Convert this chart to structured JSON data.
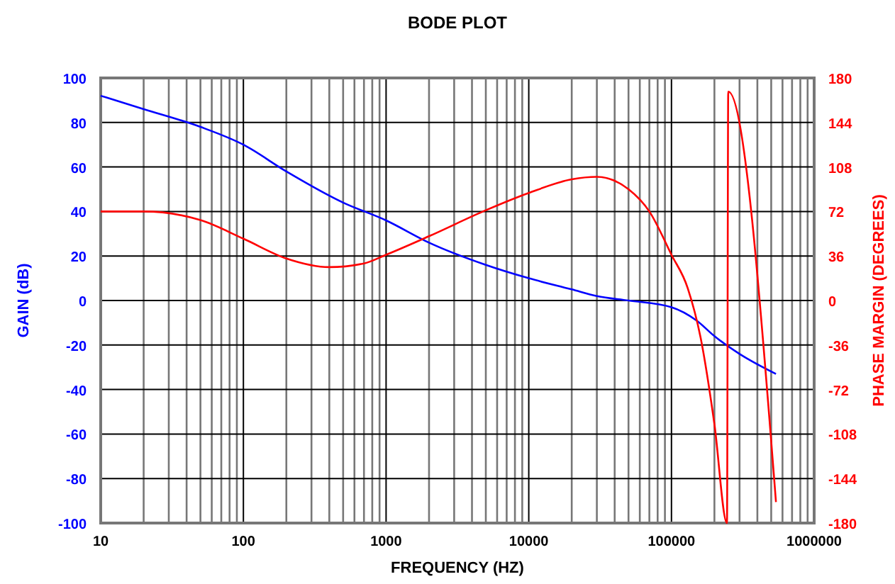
{
  "chart_data": {
    "type": "line",
    "title": "BODE PLOT",
    "xlabel": "FREQUENCY (HZ)",
    "ylabel": "GAIN (dB)",
    "y2label": "PHASE MARGIN (DEGREES)",
    "log": "x",
    "grid": true,
    "line_style": "solid",
    "xlim": [
      10,
      1000000
    ],
    "xticks": [
      10,
      100,
      1000,
      10000,
      100000,
      1000000
    ],
    "ylim": [
      -100,
      100
    ],
    "yticks": [
      -100,
      -80,
      -60,
      -40,
      -20,
      0,
      20,
      40,
      60,
      80,
      100
    ],
    "y2lim": [
      -180,
      180
    ],
    "y2ticks": [
      -180,
      -144,
      -108,
      -72,
      -36,
      0,
      36,
      72,
      108,
      144,
      180
    ],
    "series": [
      {
        "color": "#0000ff",
        "x": [
          10,
          20,
          50,
          100,
          200,
          500,
          1000,
          2000,
          5000,
          10000,
          20000,
          30000,
          50000,
          100000,
          150000,
          200000,
          300000,
          540000
        ],
        "values": [
          92,
          86,
          78,
          70,
          58,
          44,
          36,
          26,
          16,
          10,
          5,
          2,
          0,
          -3,
          -9,
          -16,
          -24,
          -33
        ]
      },
      {
        "color": "#ff0000",
        "axis": "y2",
        "x": [
          10,
          20,
          50,
          100,
          200,
          400,
          700,
          1000,
          2000,
          5000,
          10000,
          20000,
          30000,
          50000,
          70000,
          100000,
          130000,
          160000,
          200000,
          245000,
          250000,
          540000
        ],
        "values": [
          72,
          72,
          65,
          50,
          34,
          27,
          30,
          37,
          52,
          73,
          87,
          98,
          100,
          90,
          72,
          37,
          10,
          -30,
          -100,
          -180,
          169,
          -163
        ]
      }
    ]
  }
}
